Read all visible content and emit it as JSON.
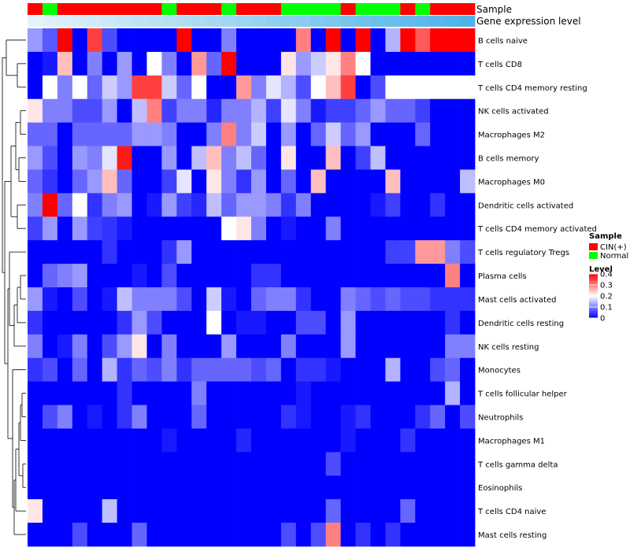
{
  "chart_data": {
    "type": "heatmap",
    "title": "",
    "annotation_tracks": [
      "Sample",
      "Gene expression level"
    ],
    "sample_groups": {
      "CIN": "CIN(+)",
      "N": "Normal"
    },
    "sample_annotation": [
      "CIN",
      "N",
      "CIN",
      "CIN",
      "CIN",
      "CIN",
      "CIN",
      "CIN",
      "CIN",
      "N",
      "CIN",
      "CIN",
      "CIN",
      "N",
      "CIN",
      "CIN",
      "CIN",
      "N",
      "N",
      "N",
      "N",
      "CIN",
      "N",
      "N",
      "N",
      "CIN",
      "N",
      "CIN",
      "CIN",
      "CIN"
    ],
    "expression_level": [
      0.03,
      0.07,
      0.1,
      0.13,
      0.17,
      0.2,
      0.23,
      0.27,
      0.3,
      0.33,
      0.37,
      0.4,
      0.43,
      0.47,
      0.5,
      0.53,
      0.57,
      0.6,
      0.63,
      0.67,
      0.7,
      0.73,
      0.77,
      0.8,
      0.83,
      0.87,
      0.9,
      0.93,
      0.97,
      1.0
    ],
    "rows": [
      "B cells naive",
      "T cells CD8",
      "T cells CD4 memory resting",
      "NK cells activated",
      "Macrophages M2",
      "B cells memory",
      "Macrophages M0",
      "Dendritic cells activated",
      "T cells CD4 memory activated",
      "T cells regulatory  Tregs",
      "Plasma cells",
      "Mast cells activated",
      "Dendritic cells resting",
      "NK cells resting",
      "Monocytes",
      "T cells follicular helper",
      "Neutrophils",
      "Macrophages M1",
      "T cells gamma delta",
      "Eosinophils",
      "T cells CD4 naive",
      "Mast cells resting"
    ],
    "values": [
      [
        0.12,
        0.07,
        0.4,
        0.0,
        0.35,
        0.06,
        0.0,
        0.0,
        0.0,
        0.0,
        0.4,
        0.0,
        0.0,
        0.1,
        0.0,
        0.0,
        0.0,
        0.0,
        0.3,
        0.0,
        0.4,
        0.0,
        0.4,
        0.0,
        0.14,
        0.4,
        0.33,
        0.4,
        0.4,
        0.4
      ],
      [
        0.0,
        0.02,
        0.25,
        0.0,
        0.1,
        0.0,
        0.12,
        0.0,
        0.2,
        0.1,
        0.0,
        0.28,
        0.08,
        0.4,
        0.0,
        0.0,
        0.0,
        0.22,
        0.12,
        0.16,
        0.22,
        0.3,
        0.2,
        0.0,
        0.0,
        0.0,
        0.0,
        0.0,
        0.0,
        0.0
      ],
      [
        0.0,
        0.2,
        0.1,
        0.2,
        0.08,
        0.16,
        0.12,
        0.35,
        0.35,
        0.16,
        0.08,
        0.2,
        0.0,
        0.0,
        0.28,
        0.1,
        0.18,
        0.14,
        0.06,
        0.2,
        0.25,
        0.35,
        0.0,
        0.06,
        0.2,
        0.2,
        0.2,
        0.2,
        0.2,
        0.2
      ],
      [
        0.22,
        0.1,
        0.1,
        0.06,
        0.06,
        0.12,
        0.0,
        0.15,
        0.3,
        0.05,
        0.1,
        0.1,
        0.03,
        0.1,
        0.1,
        0.14,
        0.05,
        0.18,
        0.1,
        0.02,
        0.05,
        0.05,
        0.08,
        0.12,
        0.08,
        0.08,
        0.05,
        0.0,
        0.0,
        0.0
      ],
      [
        0.08,
        0.08,
        0.0,
        0.08,
        0.08,
        0.08,
        0.08,
        0.12,
        0.12,
        0.1,
        0.0,
        0.0,
        0.1,
        0.3,
        0.1,
        0.16,
        0.0,
        0.12,
        0.0,
        0.08,
        0.16,
        0.08,
        0.12,
        0.0,
        0.0,
        0.0,
        0.08,
        0.0,
        0.0,
        0.0
      ],
      [
        0.12,
        0.06,
        0.0,
        0.12,
        0.1,
        0.18,
        0.38,
        0.0,
        0.0,
        0.12,
        0.0,
        0.15,
        0.25,
        0.1,
        0.15,
        0.08,
        0.0,
        0.22,
        0.0,
        0.0,
        0.25,
        0.0,
        0.05,
        0.15,
        0.0,
        0.0,
        0.0,
        0.0,
        0.0,
        0.0
      ],
      [
        0.08,
        0.04,
        0.0,
        0.08,
        0.12,
        0.25,
        0.08,
        0.0,
        0.0,
        0.05,
        0.18,
        0.0,
        0.22,
        0.1,
        0.04,
        0.12,
        0.0,
        0.08,
        0.0,
        0.25,
        0.0,
        0.0,
        0.0,
        0.0,
        0.25,
        0.0,
        0.0,
        0.0,
        0.0,
        0.15
      ],
      [
        0.1,
        0.4,
        0.08,
        0.2,
        0.04,
        0.1,
        0.12,
        0.0,
        0.02,
        0.12,
        0.05,
        0.03,
        0.15,
        0.08,
        0.12,
        0.12,
        0.1,
        0.04,
        0.1,
        0.0,
        0.0,
        0.0,
        0.0,
        0.02,
        0.05,
        0.0,
        0.0,
        0.04,
        0.0,
        0.0
      ],
      [
        0.05,
        0.12,
        0.0,
        0.12,
        0.05,
        0.04,
        0.02,
        0.0,
        0.0,
        0.0,
        0.0,
        0.0,
        0.0,
        0.2,
        0.22,
        0.1,
        0.0,
        0.02,
        0.0,
        0.0,
        0.1,
        0.0,
        0.0,
        0.0,
        0.0,
        0.0,
        0.0,
        0.0,
        0.0,
        0.0
      ],
      [
        0.0,
        0.0,
        0.0,
        0.0,
        0.0,
        0.04,
        0.0,
        0.0,
        0.0,
        0.04,
        0.12,
        0.0,
        0.0,
        0.0,
        0.0,
        0.0,
        0.0,
        0.0,
        0.0,
        0.0,
        0.0,
        0.0,
        0.0,
        0.0,
        0.05,
        0.05,
        0.28,
        0.28,
        0.1,
        0.06
      ],
      [
        0.0,
        0.08,
        0.1,
        0.12,
        0.0,
        0.0,
        0.0,
        0.02,
        0.0,
        0.06,
        0.0,
        0.0,
        0.0,
        0.0,
        0.0,
        0.04,
        0.04,
        0.0,
        0.0,
        0.0,
        0.0,
        0.0,
        0.0,
        0.0,
        0.0,
        0.0,
        0.0,
        0.0,
        0.3,
        0.0
      ],
      [
        0.12,
        0.02,
        0.0,
        0.06,
        0.0,
        0.02,
        0.15,
        0.1,
        0.1,
        0.1,
        0.06,
        0.0,
        0.16,
        0.02,
        0.0,
        0.08,
        0.1,
        0.1,
        0.04,
        0.0,
        0.0,
        0.1,
        0.08,
        0.06,
        0.08,
        0.06,
        0.06,
        0.04,
        0.04,
        0.04
      ],
      [
        0.04,
        0.0,
        0.0,
        0.0,
        0.0,
        0.0,
        0.04,
        0.12,
        0.06,
        0.0,
        0.0,
        0.0,
        0.2,
        0.0,
        0.02,
        0.02,
        0.0,
        0.0,
        0.06,
        0.06,
        0.0,
        0.12,
        0.0,
        0.0,
        0.0,
        0.0,
        0.0,
        0.0,
        0.04,
        0.0
      ],
      [
        0.1,
        0.0,
        0.02,
        0.1,
        0.0,
        0.06,
        0.12,
        0.22,
        0.0,
        0.1,
        0.0,
        0.0,
        0.0,
        0.12,
        0.0,
        0.0,
        0.0,
        0.1,
        0.0,
        0.0,
        0.0,
        0.12,
        0.0,
        0.0,
        0.0,
        0.0,
        0.0,
        0.0,
        0.1,
        0.1
      ],
      [
        0.04,
        0.06,
        0.0,
        0.08,
        0.0,
        0.14,
        0.04,
        0.08,
        0.06,
        0.1,
        0.04,
        0.08,
        0.08,
        0.08,
        0.08,
        0.06,
        0.08,
        0.0,
        0.04,
        0.04,
        0.02,
        0.0,
        0.0,
        0.0,
        0.14,
        0.0,
        0.0,
        0.06,
        0.08,
        0.0
      ],
      [
        0.0,
        0.0,
        0.0,
        0.0,
        0.0,
        0.0,
        0.04,
        0.0,
        0.0,
        0.0,
        0.0,
        0.1,
        0.0,
        0.0,
        0.0,
        0.0,
        0.0,
        0.0,
        0.02,
        0.0,
        0.0,
        0.0,
        0.0,
        0.0,
        0.0,
        0.0,
        0.0,
        0.0,
        0.14,
        0.0
      ],
      [
        0.0,
        0.06,
        0.1,
        0.0,
        0.02,
        0.0,
        0.04,
        0.1,
        0.0,
        0.0,
        0.0,
        0.08,
        0.0,
        0.0,
        0.0,
        0.0,
        0.0,
        0.04,
        0.02,
        0.0,
        0.0,
        0.02,
        0.04,
        0.0,
        0.0,
        0.0,
        0.04,
        0.08,
        0.0,
        0.06
      ],
      [
        0.0,
        0.0,
        0.0,
        0.0,
        0.0,
        0.0,
        0.0,
        0.0,
        0.0,
        0.02,
        0.0,
        0.0,
        0.0,
        0.0,
        0.03,
        0.0,
        0.0,
        0.0,
        0.0,
        0.0,
        0.0,
        0.02,
        0.0,
        0.0,
        0.0,
        0.04,
        0.0,
        0.0,
        0.0,
        0.0
      ],
      [
        0.0,
        0.0,
        0.0,
        0.0,
        0.0,
        0.0,
        0.0,
        0.0,
        0.0,
        0.0,
        0.0,
        0.0,
        0.0,
        0.0,
        0.0,
        0.0,
        0.0,
        0.0,
        0.0,
        0.0,
        0.06,
        0.0,
        0.0,
        0.0,
        0.0,
        0.0,
        0.0,
        0.0,
        0.0,
        0.0
      ],
      [
        0.0,
        0.0,
        0.0,
        0.0,
        0.0,
        0.0,
        0.0,
        0.0,
        0.0,
        0.0,
        0.0,
        0.0,
        0.0,
        0.0,
        0.0,
        0.0,
        0.0,
        0.0,
        0.0,
        0.0,
        0.0,
        0.0,
        0.0,
        0.0,
        0.0,
        0.0,
        0.0,
        0.0,
        0.0,
        0.0
      ],
      [
        0.22,
        0.0,
        0.0,
        0.0,
        0.0,
        0.15,
        0.0,
        0.0,
        0.0,
        0.0,
        0.0,
        0.0,
        0.0,
        0.0,
        0.0,
        0.0,
        0.0,
        0.0,
        0.0,
        0.0,
        0.08,
        0.0,
        0.0,
        0.0,
        0.0,
        0.08,
        0.0,
        0.0,
        0.0,
        0.0
      ],
      [
        0.0,
        0.0,
        0.0,
        0.06,
        0.0,
        0.0,
        0.0,
        0.08,
        0.0,
        0.0,
        0.0,
        0.0,
        0.0,
        0.0,
        0.0,
        0.0,
        0.0,
        0.06,
        0.0,
        0.06,
        0.3,
        0.0,
        0.04,
        0.0,
        0.04,
        0.0,
        0.0,
        0.0,
        0.0,
        0.0
      ]
    ],
    "legend": {
      "sample_title": "Sample",
      "sample_items": [
        {
          "label": "CIN(+)",
          "color": "#ff0000"
        },
        {
          "label": "Normal",
          "color": "#00ff00"
        }
      ],
      "level_title": "Level",
      "level_ticks": [
        "0.4",
        "0.3",
        "0.2",
        "0.1",
        "0"
      ],
      "level_tick_values": [
        0.4,
        0.3,
        0.2,
        0.1,
        0
      ],
      "range": [
        0,
        0.4
      ]
    },
    "colors": {
      "low": "#0000ff",
      "mid": "#ffffff",
      "high": "#ff0000",
      "cin": "#ff0000",
      "normal": "#00ff00",
      "expr_low": "#eaf6fc",
      "expr_high": "#4fb3e8"
    }
  }
}
